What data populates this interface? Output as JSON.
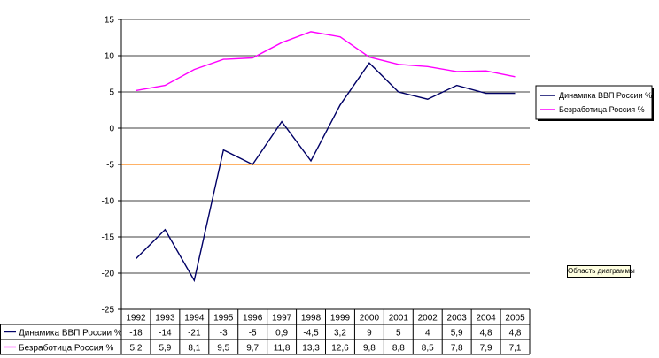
{
  "chart_data": {
    "type": "line",
    "categories": [
      "1992",
      "1993",
      "1994",
      "1995",
      "1996",
      "1997",
      "1998",
      "1999",
      "2000",
      "2001",
      "2002",
      "2003",
      "2004",
      "2005"
    ],
    "series": [
      {
        "name": "Динамика ВВП России %",
        "color": "#000066",
        "values": [
          -18,
          -14,
          -21,
          -3,
          -5,
          0.9,
          -4.5,
          3.2,
          9,
          5,
          4,
          5.9,
          4.8,
          4.8
        ],
        "labels": [
          "-18",
          "-14",
          "-21",
          "-3",
          "-5",
          "0,9",
          "-4,5",
          "3,2",
          "9",
          "5",
          "4",
          "5,9",
          "4,8",
          "4,8"
        ]
      },
      {
        "name": "Безработица Россия %",
        "color": "#ff00ff",
        "values": [
          5.2,
          5.9,
          8.1,
          9.5,
          9.7,
          11.8,
          13.3,
          12.6,
          9.8,
          8.8,
          8.5,
          7.8,
          7.9,
          7.1
        ],
        "labels": [
          "5,2",
          "5,9",
          "8,1",
          "9,5",
          "9,7",
          "11,8",
          "13,3",
          "12,6",
          "9,8",
          "8,8",
          "8,5",
          "7,8",
          "7,9",
          "7,1"
        ]
      }
    ],
    "yticks": [
      "15",
      "10",
      "5",
      "0",
      "-5",
      "-10",
      "-15",
      "-20",
      "-25"
    ],
    "ylim": [
      -25,
      15
    ],
    "reference_line": {
      "value": -5,
      "color": "#ff9933"
    },
    "grid": true,
    "legend_position": "right",
    "data_table": true
  },
  "tooltip": {
    "text": "Область диаграммы"
  }
}
